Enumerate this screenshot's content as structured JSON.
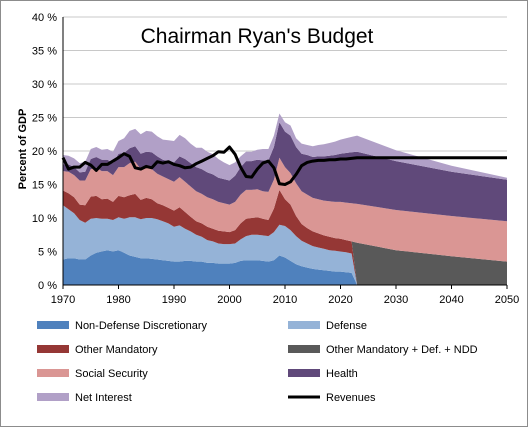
{
  "chart_data": {
    "type": "area",
    "title": "Chairman Ryan's Budget",
    "xlabel": "",
    "ylabel": "Percent of GDP",
    "xlim": [
      1970,
      2050
    ],
    "ylim": [
      0,
      40
    ],
    "x_ticks": [
      "1970",
      "1980",
      "1990",
      "2000",
      "2010",
      "2020",
      "2030",
      "2040",
      "2050"
    ],
    "y_ticks": [
      "0 %",
      "5 %",
      "10 %",
      "15 %",
      "20 %",
      "25 %",
      "30 %",
      "35 %",
      "40 %"
    ],
    "grid": "horizontal",
    "legend_position": "bottom",
    "x": [
      1970,
      1971,
      1972,
      1973,
      1974,
      1975,
      1976,
      1977,
      1978,
      1979,
      1980,
      1981,
      1982,
      1983,
      1984,
      1985,
      1986,
      1987,
      1988,
      1989,
      1990,
      1991,
      1992,
      1993,
      1994,
      1995,
      1996,
      1997,
      1998,
      1999,
      2000,
      2001,
      2002,
      2003,
      2004,
      2005,
      2006,
      2007,
      2008,
      2009,
      2010,
      2011,
      2012,
      2013,
      2014,
      2015,
      2016,
      2017,
      2018,
      2019,
      2020,
      2021,
      2022,
      2023,
      2030,
      2040,
      2050
    ],
    "series": [
      {
        "name": "Non-Defense Discretionary",
        "color": "#4f81bd",
        "values": [
          3.8,
          4.0,
          4.0,
          3.8,
          3.8,
          4.4,
          4.8,
          5.0,
          5.2,
          5.0,
          5.2,
          4.8,
          4.4,
          4.2,
          4.0,
          4.0,
          3.9,
          3.8,
          3.7,
          3.6,
          3.5,
          3.5,
          3.6,
          3.6,
          3.5,
          3.5,
          3.3,
          3.3,
          3.2,
          3.2,
          3.2,
          3.3,
          3.6,
          3.7,
          3.7,
          3.7,
          3.6,
          3.5,
          3.7,
          4.4,
          4.1,
          3.6,
          3.1,
          2.8,
          2.6,
          2.4,
          2.3,
          2.2,
          2.1,
          2.0,
          2.0,
          1.9,
          1.8,
          0,
          0,
          0,
          0
        ]
      },
      {
        "name": "Defense",
        "color": "#95b3d7",
        "values": [
          8.1,
          7.3,
          6.7,
          5.9,
          5.5,
          5.5,
          5.2,
          4.9,
          4.7,
          4.7,
          4.9,
          5.1,
          5.7,
          5.9,
          5.8,
          6.0,
          6.1,
          6.0,
          5.8,
          5.6,
          5.2,
          5.4,
          4.8,
          4.4,
          4.0,
          3.7,
          3.4,
          3.2,
          3.0,
          2.9,
          2.9,
          2.9,
          3.2,
          3.6,
          3.8,
          3.8,
          3.8,
          3.8,
          4.2,
          4.6,
          4.7,
          4.6,
          4.2,
          3.8,
          3.6,
          3.4,
          3.3,
          3.2,
          3.1,
          3.1,
          3.0,
          3.0,
          2.9,
          0,
          0,
          0,
          0
        ]
      },
      {
        "name": "Other Mandatory",
        "color": "#953735",
        "values": [
          2.2,
          2.4,
          2.4,
          2.3,
          2.6,
          3.3,
          3.3,
          2.9,
          3.0,
          2.7,
          3.2,
          3.2,
          3.3,
          3.5,
          2.9,
          3.0,
          2.8,
          2.4,
          2.4,
          2.3,
          2.4,
          2.7,
          2.5,
          2.2,
          2.0,
          2.0,
          2.0,
          1.9,
          1.9,
          1.9,
          1.8,
          2.0,
          2.4,
          2.6,
          2.5,
          2.6,
          2.5,
          2.4,
          3.5,
          5.2,
          4.0,
          3.8,
          3.0,
          2.5,
          2.3,
          2.2,
          2.1,
          2.0,
          2.0,
          1.9,
          1.9,
          1.8,
          1.8,
          0,
          0,
          0,
          0
        ]
      },
      {
        "name": "Other Mandatory + Def. + NDD",
        "color": "#595959",
        "values": [
          0,
          0,
          0,
          0,
          0,
          0,
          0,
          0,
          0,
          0,
          0,
          0,
          0,
          0,
          0,
          0,
          0,
          0,
          0,
          0,
          0,
          0,
          0,
          0,
          0,
          0,
          0,
          0,
          0,
          0,
          0,
          0,
          0,
          0,
          0,
          0,
          0,
          0,
          0,
          0,
          0,
          0,
          0,
          0,
          0,
          0,
          0,
          0,
          0,
          0,
          0,
          0,
          0,
          6.3,
          5.2,
          4.3,
          3.5
        ]
      },
      {
        "name": "Social Security",
        "color": "#da9694",
        "values": [
          2.9,
          3.2,
          3.3,
          3.6,
          3.7,
          4.1,
          4.2,
          4.2,
          4.1,
          4.0,
          4.3,
          4.5,
          4.8,
          4.8,
          4.6,
          4.5,
          4.5,
          4.4,
          4.3,
          4.3,
          4.3,
          4.5,
          4.5,
          4.5,
          4.5,
          4.4,
          4.4,
          4.4,
          4.3,
          4.2,
          4.1,
          4.2,
          4.3,
          4.3,
          4.2,
          4.2,
          4.1,
          4.2,
          4.3,
          4.8,
          4.8,
          4.7,
          4.9,
          4.9,
          5.0,
          5.0,
          5.1,
          5.2,
          5.3,
          5.4,
          5.5,
          5.6,
          5.7,
          5.8,
          6.0,
          6.0,
          6.0
        ]
      },
      {
        "name": "Health",
        "color": "#60497a",
        "values": [
          1.0,
          1.1,
          1.2,
          1.2,
          1.3,
          1.5,
          1.6,
          1.7,
          1.7,
          1.8,
          2.0,
          2.1,
          2.2,
          2.3,
          2.3,
          2.4,
          2.5,
          2.6,
          2.5,
          2.7,
          2.9,
          3.1,
          3.4,
          3.5,
          3.6,
          3.7,
          3.7,
          3.7,
          3.6,
          3.6,
          3.6,
          3.9,
          4.1,
          4.3,
          4.3,
          4.4,
          4.6,
          4.7,
          4.9,
          5.3,
          5.3,
          5.6,
          5.4,
          5.6,
          5.9,
          6.1,
          6.4,
          6.6,
          6.8,
          7.0,
          7.2,
          7.4,
          7.6,
          7.8,
          7.3,
          6.6,
          6.2
        ]
      },
      {
        "name": "Net Interest",
        "color": "#b1a0c7",
        "values": [
          1.4,
          1.3,
          1.3,
          1.4,
          1.5,
          1.5,
          1.5,
          1.5,
          1.6,
          1.7,
          1.9,
          2.2,
          2.6,
          2.6,
          2.9,
          3.1,
          3.1,
          3.0,
          3.0,
          3.1,
          3.2,
          3.2,
          3.1,
          2.9,
          2.9,
          3.2,
          3.1,
          3.0,
          2.8,
          2.5,
          2.3,
          2.0,
          1.6,
          1.4,
          1.4,
          1.5,
          1.7,
          1.7,
          1.7,
          1.3,
          1.4,
          1.5,
          1.3,
          1.5,
          1.5,
          1.6,
          1.7,
          1.8,
          1.9,
          2.0,
          2.1,
          2.2,
          2.3,
          2.4,
          1.6,
          0.9,
          0.3
        ]
      }
    ],
    "line_series": {
      "name": "Revenues",
      "color": "#000000",
      "x": [
        1970,
        1971,
        1972,
        1973,
        1974,
        1975,
        1976,
        1977,
        1978,
        1979,
        1980,
        1981,
        1982,
        1983,
        1984,
        1985,
        1986,
        1987,
        1988,
        1989,
        1990,
        1991,
        1992,
        1993,
        1994,
        1995,
        1996,
        1997,
        1998,
        1999,
        2000,
        2001,
        2002,
        2003,
        2004,
        2005,
        2006,
        2007,
        2008,
        2009,
        2010,
        2011,
        2012,
        2013,
        2014,
        2015,
        2016,
        2017,
        2018,
        2019,
        2020,
        2021,
        2022,
        2023,
        2030,
        2040,
        2050
      ],
      "values": [
        19.0,
        17.3,
        17.6,
        17.6,
        18.3,
        17.9,
        17.1,
        18.0,
        18.0,
        18.5,
        19.0,
        19.6,
        19.2,
        17.5,
        17.3,
        17.7,
        17.5,
        18.4,
        18.2,
        18.4,
        18.0,
        17.8,
        17.5,
        17.6,
        18.1,
        18.5,
        18.9,
        19.3,
        19.9,
        19.8,
        20.6,
        19.5,
        17.6,
        16.2,
        16.1,
        17.3,
        18.2,
        18.5,
        17.5,
        15.1,
        15.0,
        15.4,
        16.5,
        17.8,
        18.3,
        18.5,
        18.6,
        18.6,
        18.7,
        18.7,
        18.8,
        18.8,
        18.9,
        19.0,
        19.0,
        19.0,
        19.0
      ]
    }
  }
}
